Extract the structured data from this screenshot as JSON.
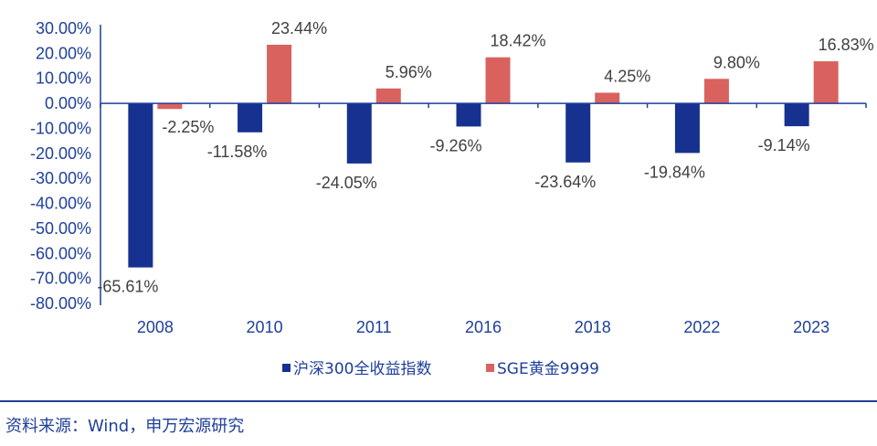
{
  "chart_data": {
    "type": "bar",
    "categories": [
      "2008",
      "2010",
      "2011",
      "2016",
      "2018",
      "2022",
      "2023"
    ],
    "series": [
      {
        "name": "沪深300全收益指数",
        "color": "#16318f",
        "values": [
          -65.61,
          -11.58,
          -24.05,
          -9.26,
          -23.64,
          -19.84,
          -9.14
        ],
        "labels": [
          "-65.61%",
          "-11.58%",
          "-24.05%",
          "-9.26%",
          "-23.64%",
          "-19.84%",
          "-9.14%"
        ]
      },
      {
        "name": "SGE黄金9999",
        "color": "#d9625f",
        "values": [
          -2.25,
          23.44,
          5.96,
          18.42,
          4.25,
          9.8,
          16.83
        ],
        "labels": [
          "-2.25%",
          "23.44%",
          "5.96%",
          "18.42%",
          "4.25%",
          "9.80%",
          "16.83%"
        ]
      }
    ],
    "yticks": [
      "30.00%",
      "20.00%",
      "10.00%",
      "0.00%",
      "-10.00%",
      "-20.00%",
      "-30.00%",
      "-40.00%",
      "-50.00%",
      "-60.00%",
      "-70.00%",
      "-80.00%"
    ],
    "ylim": [
      -80,
      30
    ],
    "legend_position": "bottom",
    "grid": false
  },
  "source": "资料来源：Wind，申万宏源研究"
}
